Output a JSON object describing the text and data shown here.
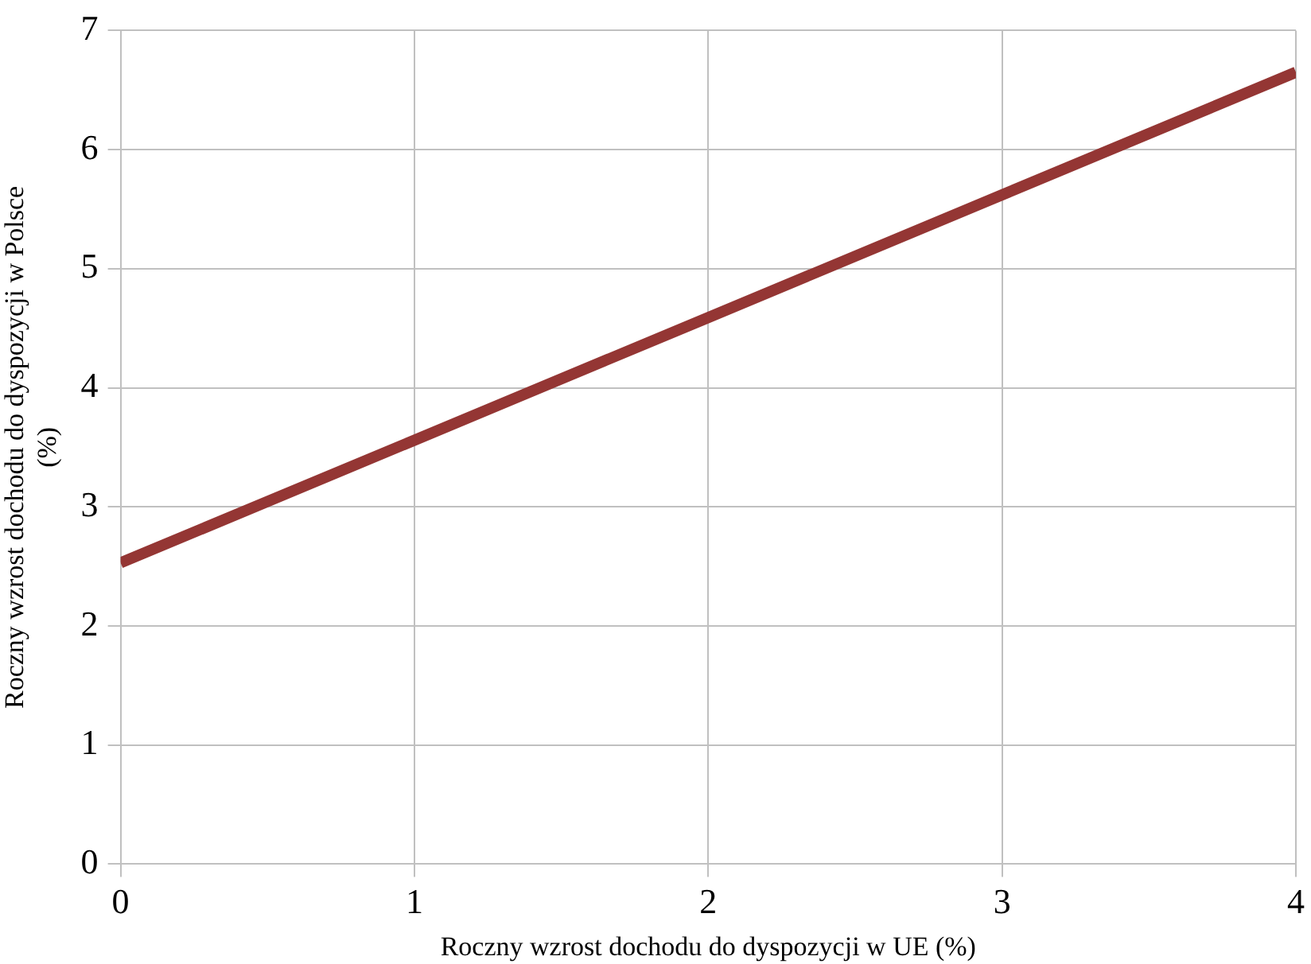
{
  "chart_data": {
    "type": "line",
    "xlabel": "Roczny wzrost dochodu do dyspozycji w UE (%)",
    "ylabel": "Roczny wzrost dochodu do dyspozycji w Polsce (%)",
    "x": [
      0,
      1,
      2,
      3,
      4
    ],
    "series": [
      {
        "color": "#943634",
        "values": [
          2.53,
          3.56,
          4.59,
          5.62,
          6.65
        ]
      }
    ],
    "xlim": [
      0,
      4
    ],
    "xticks": [
      0,
      1,
      2,
      3,
      4
    ],
    "ylim": [
      0,
      7
    ],
    "yticks": [
      0,
      1,
      2,
      3,
      4,
      5,
      6,
      7
    ],
    "grid": true,
    "legend": false,
    "marker": "none",
    "line_style": "solid"
  }
}
